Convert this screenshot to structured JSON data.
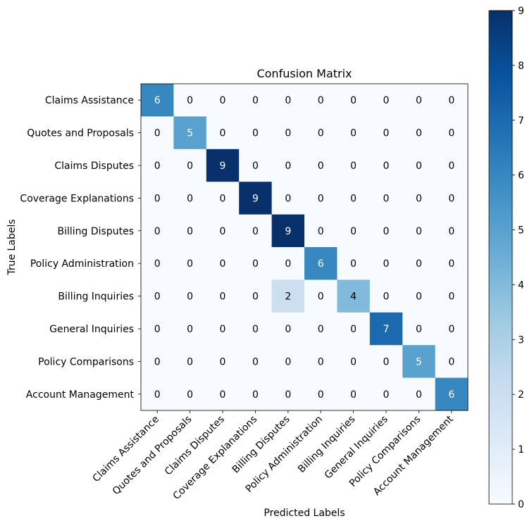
{
  "chart_data": {
    "type": "heatmap",
    "title": "Confusion Matrix",
    "xlabel": "Predicted Labels",
    "ylabel": "True Labels",
    "categories": [
      "Claims Assistance",
      "Quotes and Proposals",
      "Claims Disputes",
      "Coverage Explanations",
      "Billing Disputes",
      "Policy Administration",
      "Billing Inquiries",
      "General Inquiries",
      "Policy Comparisons",
      "Account Management"
    ],
    "matrix": [
      [
        6,
        0,
        0,
        0,
        0,
        0,
        0,
        0,
        0,
        0
      ],
      [
        0,
        5,
        0,
        0,
        0,
        0,
        0,
        0,
        0,
        0
      ],
      [
        0,
        0,
        9,
        0,
        0,
        0,
        0,
        0,
        0,
        0
      ],
      [
        0,
        0,
        0,
        9,
        0,
        0,
        0,
        0,
        0,
        0
      ],
      [
        0,
        0,
        0,
        0,
        9,
        0,
        0,
        0,
        0,
        0
      ],
      [
        0,
        0,
        0,
        0,
        0,
        6,
        0,
        0,
        0,
        0
      ],
      [
        0,
        0,
        0,
        0,
        2,
        0,
        4,
        0,
        0,
        0
      ],
      [
        0,
        0,
        0,
        0,
        0,
        0,
        0,
        7,
        0,
        0
      ],
      [
        0,
        0,
        0,
        0,
        0,
        0,
        0,
        0,
        5,
        0
      ],
      [
        0,
        0,
        0,
        0,
        0,
        0,
        0,
        0,
        0,
        6
      ]
    ],
    "colorbar": {
      "min": 0,
      "max": 9,
      "ticks": [
        0,
        1,
        2,
        3,
        4,
        5,
        6,
        7,
        8,
        9
      ],
      "colormap": "Blues"
    },
    "grid": false
  }
}
